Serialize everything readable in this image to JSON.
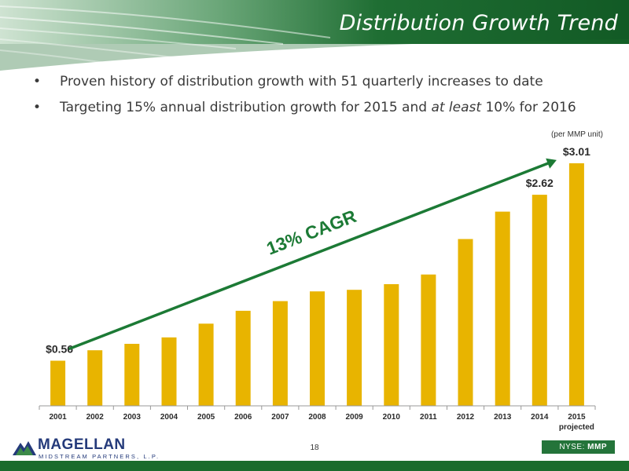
{
  "slide": {
    "title": "Distribution Growth Trend",
    "bullets": [
      {
        "before": "Proven history of distribution growth with 51 quarterly increases to date",
        "emphasis": "",
        "after": ""
      },
      {
        "before": "Targeting 15% annual distribution growth for 2015 and ",
        "emphasis": "at least",
        "after": " 10% for 2016"
      }
    ],
    "unit_note": "(per MMP unit)",
    "page_number": "18",
    "logo_name": "MAGELLAN",
    "logo_sub": "MIDSTREAM PARTNERS, L.P.",
    "ticker_exchange": "NYSE:",
    "ticker_symbol": "MMP"
  },
  "colors": {
    "bar": "#e8b400",
    "header_green": "#1c6b30",
    "arrow_green": "#1c7a35",
    "label_dark": "#2a2a2a"
  },
  "chart_data": {
    "type": "bar",
    "categories": [
      "2001",
      "2002",
      "2003",
      "2004",
      "2005",
      "2006",
      "2007",
      "2008",
      "2009",
      "2010",
      "2011",
      "2012",
      "2013",
      "2014",
      "2015"
    ],
    "category_sublabels": [
      "",
      "",
      "",
      "",
      "",
      "",
      "",
      "",
      "",
      "",
      "",
      "",
      "",
      "",
      "projected"
    ],
    "values": [
      0.56,
      0.69,
      0.77,
      0.85,
      1.02,
      1.18,
      1.3,
      1.42,
      1.44,
      1.51,
      1.63,
      2.07,
      2.41,
      2.62,
      3.01
    ],
    "data_labels": {
      "0": "$0.56",
      "13": "$2.62",
      "14": "$3.01"
    },
    "annotation": "13% CAGR",
    "ylim": [
      0,
      3.4
    ],
    "grid": false,
    "title": "",
    "xlabel": "",
    "ylabel": ""
  }
}
